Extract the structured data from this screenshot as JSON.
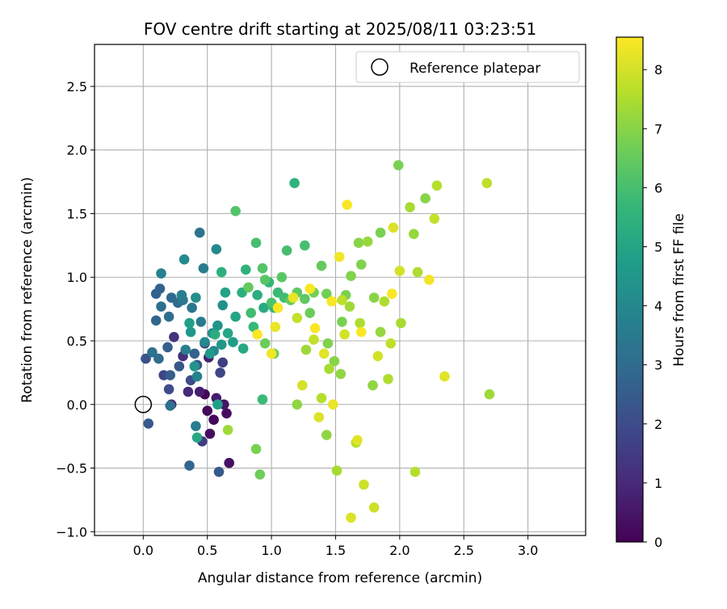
{
  "chart_data": {
    "type": "scatter",
    "title": "FOV centre drift starting at 2025/08/11 03:23:51",
    "xlabel": "Angular distance from reference (arcmin)",
    "ylabel": "Rotation from reference (arcmin)",
    "xlim": [
      -0.38,
      3.45
    ],
    "ylim": [
      -1.03,
      2.83
    ],
    "xticks": [
      0.0,
      0.5,
      1.0,
      1.5,
      2.0,
      2.5,
      3.0
    ],
    "yticks": [
      -1.0,
      -0.5,
      0.0,
      0.5,
      1.0,
      1.5,
      2.0,
      2.5
    ],
    "xtick_labels": [
      "0.0",
      "0.5",
      "1.0",
      "1.5",
      "2.0",
      "2.5",
      "3.0"
    ],
    "ytick_labels": [
      "−1.0",
      "−0.5",
      "0.0",
      "0.5",
      "1.0",
      "1.5",
      "2.0",
      "2.5"
    ],
    "grid": true,
    "legend": {
      "placement": "upper right",
      "label": "Reference platepar"
    },
    "reference_point": {
      "x": 0.0,
      "y": 0.0,
      "marker": "open-circle"
    },
    "colorbar": {
      "label": "Hours from first FF file",
      "colormap": "viridis",
      "range": [
        0,
        8.55
      ],
      "ticks": [
        0,
        1,
        2,
        3,
        4,
        5,
        6,
        7,
        8
      ],
      "tick_labels": [
        "0",
        "1",
        "2",
        "3",
        "4",
        "5",
        "6",
        "7",
        "8"
      ]
    },
    "series": [
      {
        "points": [
          [
            0.48,
            0.08,
            0.1
          ],
          [
            0.55,
            -0.12,
            0.2
          ],
          [
            0.5,
            -0.05,
            0.2
          ],
          [
            0.65,
            -0.07,
            0.3
          ],
          [
            0.52,
            -0.23,
            0.3
          ],
          [
            0.67,
            -0.46,
            0.4
          ],
          [
            0.63,
            0.0,
            0.5
          ],
          [
            0.57,
            0.05,
            0.6
          ],
          [
            0.44,
            0.1,
            0.7
          ],
          [
            0.51,
            0.37,
            0.8
          ],
          [
            0.22,
            0.0,
            0.9
          ],
          [
            0.35,
            0.1,
            1.0
          ],
          [
            0.48,
            0.48,
            1.1
          ],
          [
            0.31,
            0.38,
            1.2
          ],
          [
            0.24,
            0.53,
            1.3
          ],
          [
            0.46,
            -0.29,
            1.5
          ],
          [
            0.62,
            0.33,
            1.6
          ],
          [
            0.6,
            0.25,
            1.8
          ],
          [
            0.16,
            0.23,
            1.8
          ],
          [
            0.37,
            0.19,
            2.0
          ],
          [
            0.2,
            0.12,
            2.0
          ],
          [
            0.42,
            0.31,
            2.2
          ],
          [
            0.02,
            0.36,
            2.2
          ],
          [
            0.28,
            0.3,
            2.3
          ],
          [
            0.59,
            -0.53,
            2.4
          ],
          [
            0.04,
            -0.15,
            2.4
          ],
          [
            0.19,
            0.45,
            2.5
          ],
          [
            0.21,
            0.23,
            2.5
          ],
          [
            0.1,
            0.87,
            2.6
          ],
          [
            0.13,
            0.91,
            2.7
          ],
          [
            0.4,
            0.4,
            2.7
          ],
          [
            0.36,
            -0.48,
            2.8
          ],
          [
            0.1,
            0.66,
            2.8
          ],
          [
            0.22,
            0.84,
            2.9
          ],
          [
            0.12,
            0.36,
            3.0
          ],
          [
            0.27,
            0.8,
            3.0
          ],
          [
            0.14,
            0.77,
            3.1
          ],
          [
            0.2,
            0.69,
            3.1
          ],
          [
            0.07,
            0.41,
            3.2
          ],
          [
            0.21,
            -0.01,
            3.2
          ],
          [
            0.44,
            1.35,
            3.3
          ],
          [
            0.38,
            0.76,
            3.4
          ],
          [
            0.31,
            0.82,
            3.4
          ],
          [
            0.45,
            0.65,
            3.5
          ],
          [
            0.47,
            1.07,
            3.6
          ],
          [
            0.41,
            -0.17,
            3.6
          ],
          [
            0.3,
            0.86,
            3.7
          ],
          [
            0.33,
            0.43,
            3.7
          ],
          [
            0.42,
            0.22,
            3.8
          ],
          [
            0.14,
            1.03,
            3.8
          ],
          [
            0.55,
            0.42,
            3.9
          ],
          [
            0.48,
            0.49,
            4.0
          ],
          [
            0.57,
            1.22,
            4.0
          ],
          [
            0.32,
            1.14,
            4.1
          ],
          [
            0.54,
            0.56,
            4.2
          ],
          [
            0.41,
            0.84,
            4.2
          ],
          [
            0.62,
            0.78,
            4.3
          ],
          [
            0.58,
            0.62,
            4.4
          ],
          [
            0.4,
            0.3,
            4.4
          ],
          [
            0.37,
            0.57,
            4.5
          ],
          [
            0.61,
            0.47,
            4.5
          ],
          [
            0.52,
            0.4,
            4.6
          ],
          [
            0.7,
            0.49,
            4.7
          ],
          [
            0.36,
            0.64,
            4.8
          ],
          [
            0.58,
            0.0,
            4.8
          ],
          [
            0.64,
            0.88,
            4.9
          ],
          [
            0.66,
            0.56,
            5.0
          ],
          [
            0.72,
            0.69,
            5.0
          ],
          [
            0.78,
            0.44,
            5.1
          ],
          [
            0.42,
            -0.26,
            5.1
          ],
          [
            0.94,
            0.76,
            5.2
          ],
          [
            0.89,
            0.86,
            5.3
          ],
          [
            0.56,
            0.55,
            5.3
          ],
          [
            0.61,
            1.04,
            5.4
          ],
          [
            0.77,
            0.88,
            5.4
          ],
          [
            1.18,
            1.74,
            5.5
          ],
          [
            0.8,
            1.06,
            5.5
          ],
          [
            0.98,
            0.96,
            5.6
          ],
          [
            0.86,
            0.61,
            5.7
          ],
          [
            1.02,
            0.76,
            5.7
          ],
          [
            0.93,
            0.04,
            5.8
          ],
          [
            1.05,
            0.88,
            5.8
          ],
          [
            1.1,
            0.84,
            5.9
          ],
          [
            0.84,
            0.72,
            5.9
          ],
          [
            1.12,
            1.21,
            6.0
          ],
          [
            1.26,
            1.25,
            6.0
          ],
          [
            0.88,
            1.27,
            6.0
          ],
          [
            1.0,
            0.8,
            6.1
          ],
          [
            0.93,
            1.07,
            6.2
          ],
          [
            0.72,
            1.52,
            6.2
          ],
          [
            1.08,
            1.0,
            6.3
          ],
          [
            0.95,
            0.98,
            6.3
          ],
          [
            1.26,
            0.83,
            6.4
          ],
          [
            1.2,
            0.88,
            6.4
          ],
          [
            0.82,
            0.92,
            6.5
          ],
          [
            1.39,
            1.09,
            6.5
          ],
          [
            1.15,
            0.82,
            6.5
          ],
          [
            0.95,
            0.48,
            6.6
          ],
          [
            1.02,
            0.4,
            6.6
          ],
          [
            1.3,
            0.72,
            6.6
          ],
          [
            0.91,
            -0.55,
            6.6
          ],
          [
            1.43,
            0.87,
            6.7
          ],
          [
            1.33,
            0.88,
            6.7
          ],
          [
            1.58,
            0.86,
            6.8
          ],
          [
            1.99,
            1.88,
            6.8
          ],
          [
            1.85,
            1.35,
            6.8
          ],
          [
            0.88,
            -0.35,
            6.8
          ],
          [
            1.55,
            0.65,
            6.8
          ],
          [
            1.44,
            0.48,
            6.9
          ],
          [
            1.7,
            1.1,
            6.9
          ],
          [
            1.62,
            1.01,
            6.9
          ],
          [
            1.8,
            0.84,
            7.0
          ],
          [
            1.49,
            0.34,
            7.0
          ],
          [
            2.2,
            1.62,
            7.0
          ],
          [
            1.68,
            1.27,
            7.0
          ],
          [
            1.2,
            0.0,
            7.1
          ],
          [
            1.54,
            0.24,
            7.1
          ],
          [
            1.43,
            -0.24,
            7.1
          ],
          [
            1.79,
            0.15,
            7.1
          ],
          [
            2.11,
            1.34,
            7.2
          ],
          [
            1.85,
            0.57,
            7.2
          ],
          [
            1.75,
            1.28,
            7.2
          ],
          [
            1.27,
            0.43,
            7.3
          ],
          [
            1.61,
            0.77,
            7.3
          ],
          [
            0.66,
            -0.2,
            7.3
          ],
          [
            2.7,
            0.08,
            7.3
          ],
          [
            2.08,
            1.55,
            7.4
          ],
          [
            1.45,
            0.28,
            7.4
          ],
          [
            1.51,
            -0.52,
            7.4
          ],
          [
            2.01,
            0.64,
            7.4
          ],
          [
            1.91,
            0.2,
            7.5
          ],
          [
            1.69,
            0.64,
            7.5
          ],
          [
            2.14,
            1.04,
            7.5
          ],
          [
            1.88,
            0.81,
            7.5
          ],
          [
            2.29,
            1.72,
            7.6
          ],
          [
            1.39,
            0.05,
            7.6
          ],
          [
            1.66,
            -0.3,
            7.6
          ],
          [
            2.12,
            -0.53,
            7.6
          ],
          [
            2.68,
            1.74,
            7.7
          ],
          [
            1.55,
            0.82,
            7.7
          ],
          [
            1.93,
            0.48,
            7.7
          ],
          [
            1.2,
            0.68,
            7.8
          ],
          [
            1.33,
            0.51,
            7.8
          ],
          [
            2.27,
            1.46,
            7.8
          ],
          [
            1.72,
            -0.63,
            7.9
          ],
          [
            1.8,
            -0.81,
            7.9
          ],
          [
            2.0,
            1.05,
            8.0
          ],
          [
            1.24,
            0.15,
            8.0
          ],
          [
            1.57,
            0.55,
            8.0
          ],
          [
            1.83,
            0.38,
            8.0
          ],
          [
            1.37,
            -0.1,
            8.1
          ],
          [
            1.62,
            -0.89,
            8.1
          ],
          [
            1.95,
            1.39,
            8.1
          ],
          [
            1.41,
            0.4,
            8.2
          ],
          [
            1.67,
            -0.28,
            8.2
          ],
          [
            2.35,
            0.22,
            8.2
          ],
          [
            1.48,
            0.0,
            8.3
          ],
          [
            1.03,
            0.61,
            8.3
          ],
          [
            1.17,
            0.84,
            8.3
          ],
          [
            1.53,
            1.16,
            8.4
          ],
          [
            2.23,
            0.98,
            8.4
          ],
          [
            1.0,
            0.4,
            8.4
          ],
          [
            1.59,
            1.57,
            8.5
          ],
          [
            1.3,
            0.91,
            8.5
          ],
          [
            1.47,
            0.81,
            8.5
          ],
          [
            0.89,
            0.55,
            8.5
          ],
          [
            1.7,
            0.57,
            8.5
          ],
          [
            1.94,
            0.87,
            8.5
          ],
          [
            1.05,
            0.76,
            8.5
          ],
          [
            1.34,
            0.6,
            8.5
          ]
        ]
      }
    ]
  }
}
